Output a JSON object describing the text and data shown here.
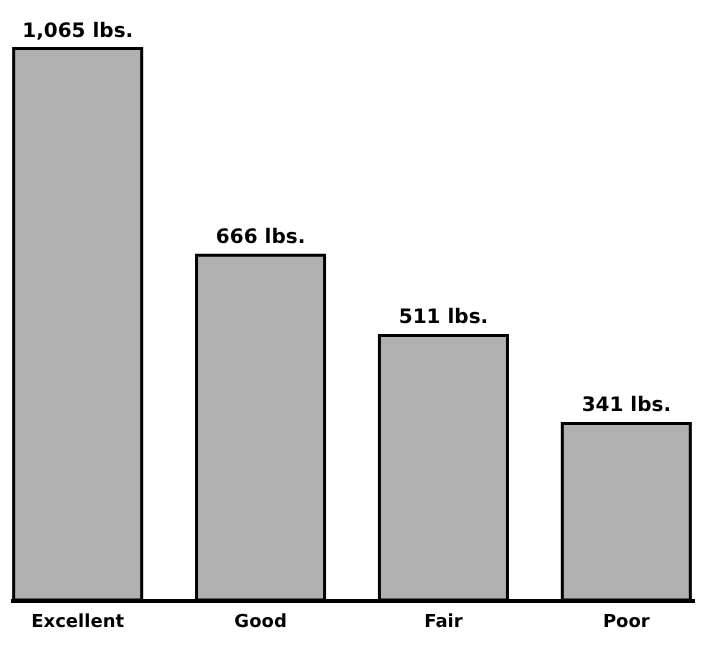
{
  "chart_data": {
    "type": "bar",
    "categories": [
      "Excellent",
      "Good",
      "Fair",
      "Poor"
    ],
    "values": [
      1065,
      666,
      511,
      341
    ],
    "value_labels": [
      "1,065 lbs.",
      "666 lbs.",
      "511 lbs.",
      "341 lbs."
    ],
    "color": "#b0b0b0"
  }
}
